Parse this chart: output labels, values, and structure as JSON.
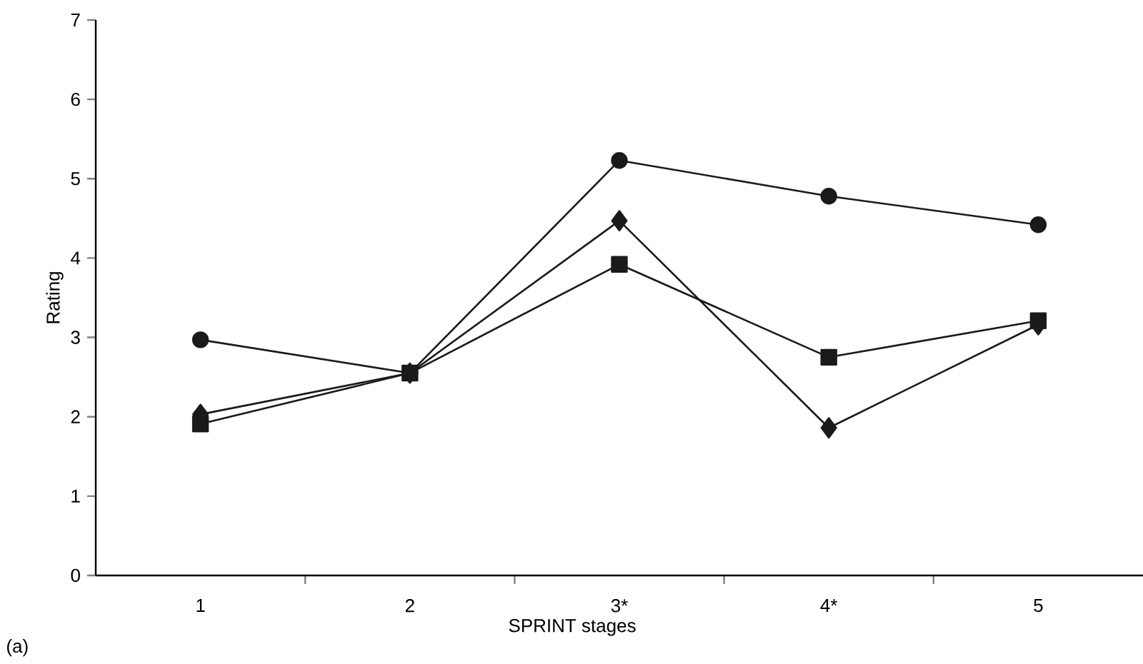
{
  "chart_data": {
    "type": "line",
    "xlabel": "SPRINT stages",
    "ylabel": "Rating",
    "categories": [
      "1",
      "2",
      "3*",
      "4*",
      "5"
    ],
    "series": [
      {
        "color": "#1a1a1a",
        "marker": "circle",
        "values": [
          2.97,
          2.55,
          5.23,
          4.78,
          4.42
        ]
      },
      {
        "color": "#1a1a1a",
        "marker": "diamond",
        "values": [
          2.03,
          2.55,
          4.47,
          1.86,
          3.16
        ]
      },
      {
        "color": "#1a1a1a",
        "marker": "square",
        "values": [
          1.91,
          2.55,
          3.92,
          2.75,
          3.21
        ]
      }
    ],
    "ylim": [
      0,
      7
    ],
    "yticks": [
      0,
      1,
      2,
      3,
      4,
      5,
      6,
      7
    ],
    "line_style": "solid",
    "annotations": [
      "(a)"
    ]
  }
}
